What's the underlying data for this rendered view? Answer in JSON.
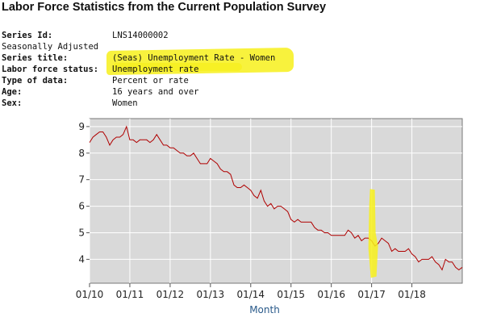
{
  "page": {
    "title": "Labor Force Statistics from the Current Population Survey"
  },
  "series_info": {
    "series_id_label": "Series Id:",
    "series_id_value": "LNS14000002",
    "seasonal_note": "Seasonally Adjusted",
    "series_title_label": "Series title:",
    "series_title_value": "(Seas) Unemployment Rate - Women",
    "lfs_label": "Labor force status:",
    "lfs_value": "Unemployment rate",
    "type_label": "Type of data:",
    "type_value": "Percent or rate",
    "age_label": "Age:",
    "age_value": "16 years and over",
    "sex_label": "Sex:",
    "sex_value": "Women"
  },
  "highlight_color": "#f7f01b",
  "chart_data": {
    "type": "line",
    "xlabel": "Month",
    "ylabel": "",
    "title": "",
    "x_ticks": [
      "01/10",
      "01/11",
      "01/12",
      "01/13",
      "01/14",
      "01/15",
      "01/16",
      "01/17",
      "01/18"
    ],
    "y_ticks": [
      4,
      5,
      6,
      7,
      8,
      9
    ],
    "x_range": [
      "2010-01",
      "2018-10"
    ],
    "ylim": [
      3.1,
      9.3
    ],
    "grid": true,
    "line_color": "#b00000",
    "background_color": "#d9d9d9",
    "series": [
      {
        "values": [
          8.4,
          8.6,
          8.7,
          8.8,
          8.8,
          8.6,
          8.3,
          8.5,
          8.6,
          8.6,
          8.7,
          9.0,
          8.5,
          8.5,
          8.4,
          8.5,
          8.5,
          8.5,
          8.4,
          8.5,
          8.7,
          8.5,
          8.3,
          8.3,
          8.2,
          8.2,
          8.1,
          8.0,
          8.0,
          7.9,
          7.9,
          8.0,
          7.8,
          7.6,
          7.6,
          7.6,
          7.8,
          7.7,
          7.6,
          7.4,
          7.3,
          7.3,
          7.2,
          6.8,
          6.7,
          6.7,
          6.8,
          6.7,
          6.6,
          6.4,
          6.3,
          6.6,
          6.2,
          6.0,
          6.1,
          5.9,
          6.0,
          6.0,
          5.9,
          5.8,
          5.5,
          5.4,
          5.5,
          5.4,
          5.4,
          5.4,
          5.4,
          5.2,
          5.1,
          5.1,
          5.0,
          5.0,
          4.9,
          4.9,
          4.9,
          4.9,
          4.9,
          5.1,
          5.0,
          4.8,
          4.9,
          4.7,
          4.8,
          4.8,
          4.7,
          4.5,
          4.6,
          4.8,
          4.7,
          4.6,
          4.3,
          4.4,
          4.3,
          4.3,
          4.3,
          4.4,
          4.2,
          4.1,
          3.9,
          4.0,
          4.0,
          4.0,
          4.1,
          3.9,
          3.8,
          3.6,
          4.0,
          3.9,
          3.9,
          3.7,
          3.6,
          3.7
        ]
      }
    ]
  }
}
